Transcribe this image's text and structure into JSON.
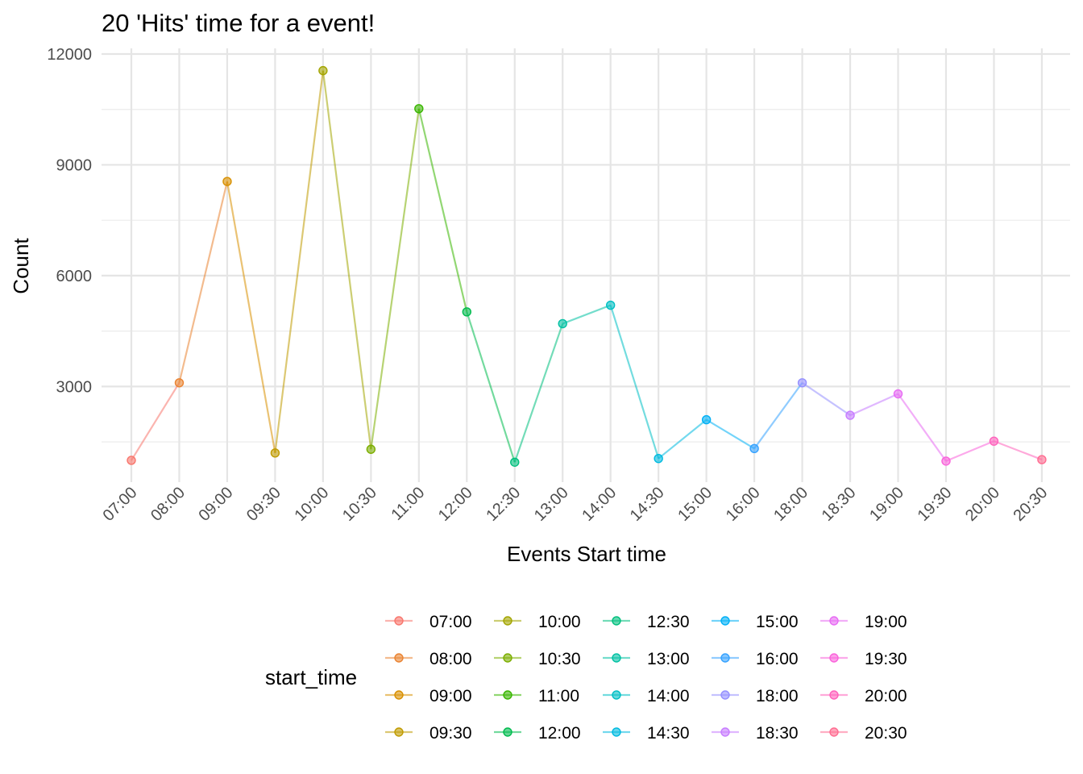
{
  "chart_data": {
    "type": "line",
    "title": "20 'Hits' time for a event!",
    "xlabel": "Events Start time",
    "ylabel": "Count",
    "ylim": [
      0,
      12000
    ],
    "yticks": [
      3000,
      6000,
      9000,
      12000
    ],
    "ytick_labels": [
      "3000",
      "6000",
      "9000",
      "12000"
    ],
    "grid": true,
    "categories": [
      "07:00",
      "08:00",
      "09:00",
      "09:30",
      "10:00",
      "10:30",
      "11:00",
      "12:00",
      "12:30",
      "13:00",
      "14:00",
      "14:30",
      "15:00",
      "16:00",
      "18:00",
      "18:30",
      "19:00",
      "19:30",
      "20:00",
      "20:30"
    ],
    "values": [
      1000,
      3100,
      8550,
      1200,
      11550,
      1300,
      10520,
      5020,
      950,
      4700,
      5200,
      1050,
      2100,
      1320,
      3100,
      2220,
      2800,
      980,
      1520,
      1020
    ],
    "colors": [
      "#F8766D",
      "#EA8331",
      "#D89000",
      "#C09B00",
      "#A3A500",
      "#7CAE00",
      "#39B600",
      "#00BB4E",
      "#00BF7D",
      "#00C1A3",
      "#00BFC4",
      "#00BAE0",
      "#00B0F6",
      "#35A2FF",
      "#9590FF",
      "#C77CFF",
      "#E76BF3",
      "#FA62DB",
      "#FF62BC",
      "#FF6C91"
    ],
    "legend": {
      "title": "start_time",
      "placement": "bottom"
    }
  }
}
